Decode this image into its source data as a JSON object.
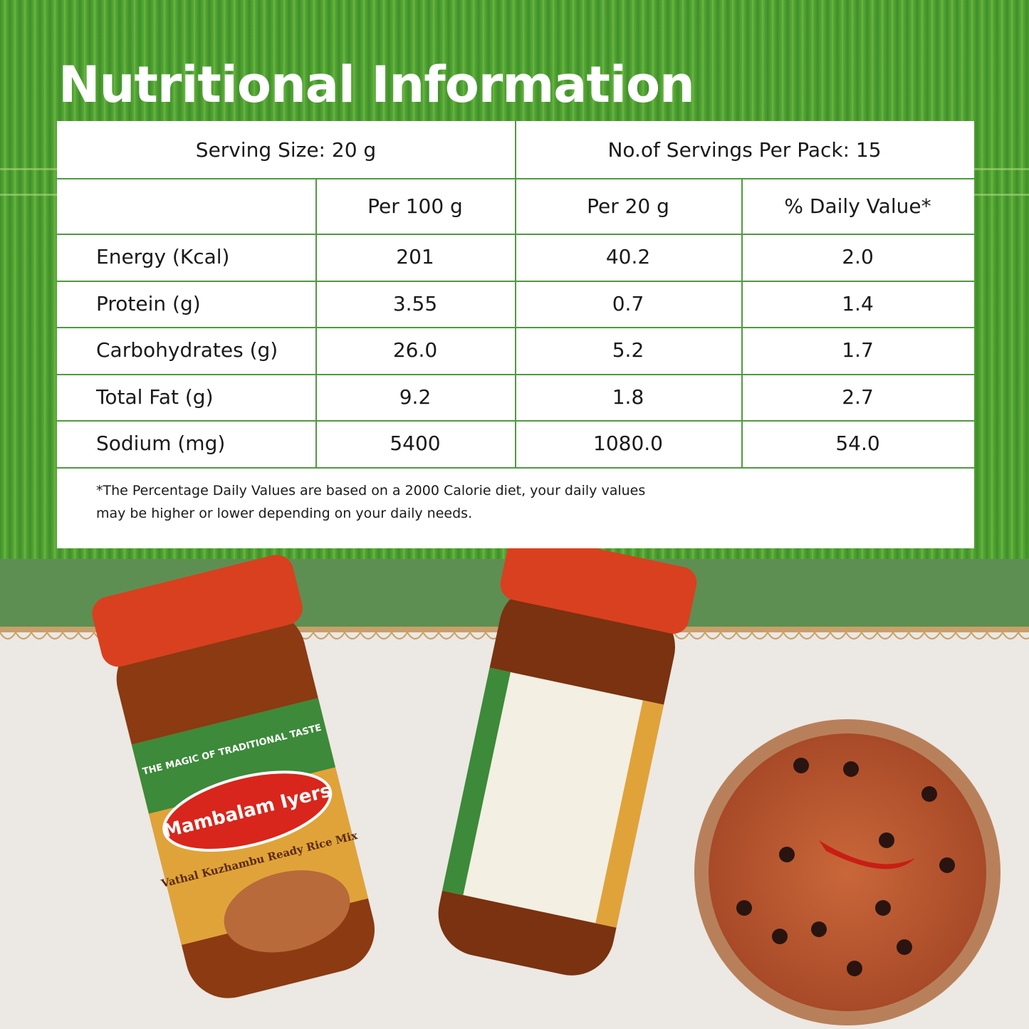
{
  "title": "Nutritional Information",
  "table": {
    "serving_size": "Serving Size: 20 g",
    "servings_per_pack": "No.of Servings Per Pack: 15",
    "columns": [
      "Per 100 g",
      "Per 20 g",
      "% Daily Value*"
    ],
    "rows": [
      [
        "Energy (Kcal)",
        "201",
        "40.2",
        "2.0"
      ],
      [
        "Protein (g)",
        "3.55",
        "0.7",
        "1.4"
      ],
      [
        "Carbohydrates (g)",
        "26.0",
        "5.2",
        "1.7"
      ],
      [
        "Total Fat (g)",
        "9.2",
        "1.8",
        "2.7"
      ],
      [
        "Sodium (mg)",
        "5400",
        "1080.0",
        "54.0"
      ]
    ],
    "footnote": [
      "*The Percentage Daily Values are based on a 2000 Calorie diet, your daily values",
      "may be higher or lower depending on your daily needs."
    ]
  },
  "product": {
    "tagline": "THE MAGIC OF TRADITIONAL TASTE",
    "brand": "Mambalam Iyers",
    "name": "Vathal Kuzhambu Ready Rice Mix"
  }
}
